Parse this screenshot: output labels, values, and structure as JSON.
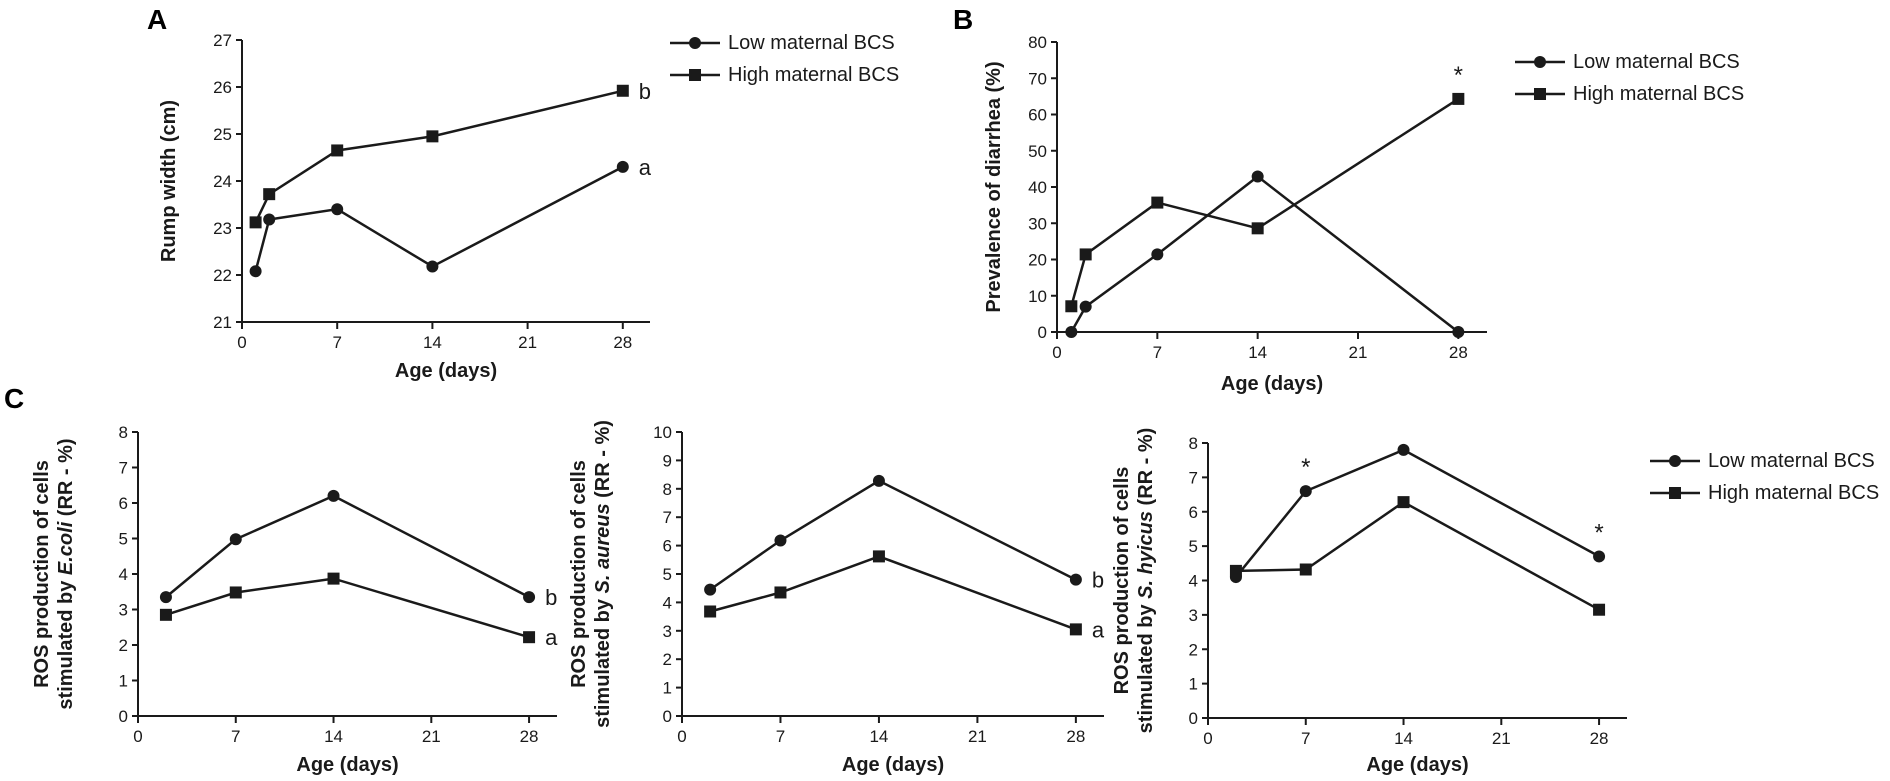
{
  "panels": [
    {
      "letter": "A"
    },
    {
      "letter": "B"
    },
    {
      "letter": "C"
    }
  ],
  "legend": {
    "low": "Low maternal BCS",
    "high": "High maternal BCS"
  },
  "chart_data": [
    {
      "id": "A",
      "type": "line",
      "xlabel": "Age (days)",
      "ylabel": "Rump width (cm)",
      "xlim": [
        0,
        30
      ],
      "ylim": [
        21,
        27
      ],
      "xticks": [
        0,
        7,
        14,
        21,
        28
      ],
      "yticks": [
        21,
        22,
        23,
        24,
        25,
        26,
        27
      ],
      "series": [
        {
          "name": "Low maternal BCS",
          "marker": "circle",
          "x": [
            1,
            2,
            7,
            14,
            28
          ],
          "y": [
            22.08,
            23.18,
            23.4,
            22.18,
            24.3
          ]
        },
        {
          "name": "High maternal BCS",
          "marker": "square",
          "x": [
            1,
            2,
            7,
            14,
            28
          ],
          "y": [
            23.12,
            23.72,
            24.65,
            24.95,
            25.92
          ]
        }
      ],
      "annotations": [
        {
          "text": "b",
          "x": 28,
          "y": 25.92,
          "side": "right"
        },
        {
          "text": "a",
          "x": 28,
          "y": 24.3,
          "side": "right"
        }
      ]
    },
    {
      "id": "B",
      "type": "line",
      "xlabel": "Age (days)",
      "ylabel": "Prevalence of diarrhea (%)",
      "xlim": [
        0,
        30
      ],
      "ylim": [
        0,
        80
      ],
      "xticks": [
        0,
        7,
        14,
        21,
        28
      ],
      "yticks": [
        0,
        10,
        20,
        30,
        40,
        50,
        60,
        70,
        80
      ],
      "series": [
        {
          "name": "Low maternal BCS",
          "marker": "circle",
          "x": [
            1,
            2,
            7,
            14,
            28
          ],
          "y": [
            0,
            7,
            21.4,
            42.9,
            0
          ]
        },
        {
          "name": "High maternal BCS",
          "marker": "square",
          "x": [
            1,
            2,
            7,
            14,
            28
          ],
          "y": [
            7.1,
            21.4,
            35.7,
            28.6,
            64.3
          ]
        }
      ],
      "annotations": [
        {
          "text": "*",
          "x": 28,
          "y": 64.3,
          "side": "above"
        }
      ]
    },
    {
      "id": "C1",
      "type": "line",
      "xlabel": "Age (days)",
      "ylabel_line1": "ROS production of cells",
      "ylabel_prefix": "stimulated by ",
      "ylabel_italic": "E.coli",
      "ylabel_suffix": " (RR - %)",
      "xlim": [
        0,
        30
      ],
      "ylim": [
        0,
        8
      ],
      "xticks": [
        0,
        7,
        14,
        21,
        28
      ],
      "yticks": [
        0,
        1,
        2,
        3,
        4,
        5,
        6,
        7,
        8
      ],
      "series": [
        {
          "name": "Low maternal BCS",
          "marker": "circle",
          "x": [
            2,
            7,
            14,
            28
          ],
          "y": [
            3.35,
            4.98,
            6.2,
            3.35
          ]
        },
        {
          "name": "High maternal BCS",
          "marker": "square",
          "x": [
            2,
            7,
            14,
            28
          ],
          "y": [
            2.85,
            3.48,
            3.87,
            2.22
          ]
        }
      ],
      "annotations": [
        {
          "text": "b",
          "x": 28,
          "y": 3.35,
          "side": "right"
        },
        {
          "text": "a",
          "x": 28,
          "y": 2.22,
          "side": "right"
        }
      ]
    },
    {
      "id": "C2",
      "type": "line",
      "xlabel": "Age (days)",
      "ylabel_line1": "ROS production of cells",
      "ylabel_prefix": "stimulated by ",
      "ylabel_italic": "S. aureus",
      "ylabel_suffix": " (RR - %)",
      "xlim": [
        0,
        30
      ],
      "ylim": [
        0,
        10
      ],
      "xticks": [
        0,
        7,
        14,
        21,
        28
      ],
      "yticks": [
        0,
        1,
        2,
        3,
        4,
        5,
        6,
        7,
        8,
        9,
        10
      ],
      "series": [
        {
          "name": "Low maternal BCS",
          "marker": "circle",
          "x": [
            2,
            7,
            14,
            28
          ],
          "y": [
            4.45,
            6.18,
            8.28,
            4.8
          ]
        },
        {
          "name": "High maternal BCS",
          "marker": "square",
          "x": [
            2,
            7,
            14,
            28
          ],
          "y": [
            3.68,
            4.35,
            5.62,
            3.05
          ]
        }
      ],
      "annotations": [
        {
          "text": "b",
          "x": 28,
          "y": 4.8,
          "side": "right"
        },
        {
          "text": "a",
          "x": 28,
          "y": 3.05,
          "side": "right"
        }
      ]
    },
    {
      "id": "C3",
      "type": "line",
      "xlabel": "Age (days)",
      "ylabel_line1": "ROS production of cells",
      "ylabel_prefix": "stimulated by ",
      "ylabel_italic": "S. hyicus",
      "ylabel_suffix": " (RR - %)",
      "xlim": [
        0,
        30
      ],
      "ylim": [
        0,
        8
      ],
      "xticks": [
        0,
        7,
        14,
        21,
        28
      ],
      "yticks": [
        0,
        1,
        2,
        3,
        4,
        5,
        6,
        7,
        8
      ],
      "series": [
        {
          "name": "Low maternal BCS",
          "marker": "circle",
          "x": [
            2,
            7,
            14,
            28
          ],
          "y": [
            4.1,
            6.6,
            7.8,
            4.7
          ]
        },
        {
          "name": "High maternal BCS",
          "marker": "square",
          "x": [
            2,
            7,
            14,
            28
          ],
          "y": [
            4.28,
            4.32,
            6.28,
            3.15
          ]
        }
      ],
      "annotations": [
        {
          "text": "*",
          "x": 7,
          "y": 6.6,
          "side": "above"
        },
        {
          "text": "*",
          "x": 28,
          "y": 4.7,
          "side": "above"
        }
      ]
    }
  ]
}
